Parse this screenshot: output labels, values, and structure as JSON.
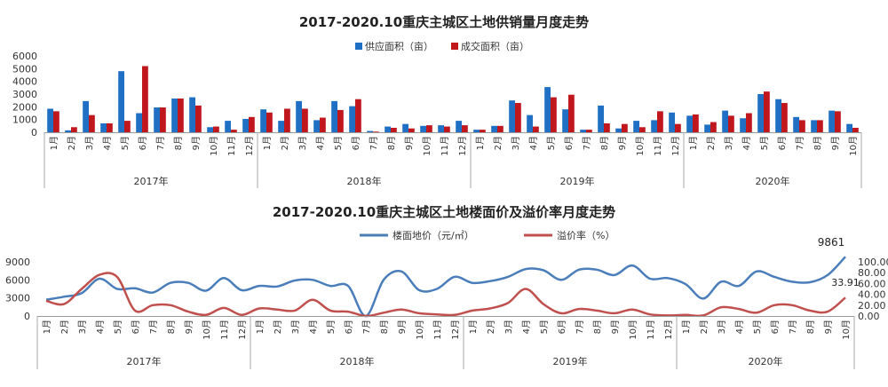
{
  "chart_data": [
    {
      "type": "bar",
      "title": "2017-2020.10重庆主城区土地供销量月度走势",
      "legend_position": "top",
      "grid": false,
      "ylim": [
        0,
        6000
      ],
      "yticks": [
        0,
        1000,
        2000,
        3000,
        4000,
        5000,
        6000
      ],
      "years": [
        {
          "label": "2017年",
          "months": 12
        },
        {
          "label": "2018年",
          "months": 12
        },
        {
          "label": "2019年",
          "months": 12
        },
        {
          "label": "2020年",
          "months": 10
        }
      ],
      "categories": [
        "1月",
        "2月",
        "3月",
        "4月",
        "5月",
        "6月",
        "7月",
        "8月",
        "9月",
        "10月",
        "11月",
        "12月",
        "1月",
        "2月",
        "3月",
        "4月",
        "5月",
        "6月",
        "7月",
        "8月",
        "9月",
        "10月",
        "11月",
        "12月",
        "1月",
        "2月",
        "3月",
        "4月",
        "5月",
        "6月",
        "7月",
        "8月",
        "9月",
        "10月",
        "11月",
        "12月",
        "1月",
        "2月",
        "3月",
        "4月",
        "5月",
        "6月",
        "7月",
        "8月",
        "9月",
        "10月"
      ],
      "series": [
        {
          "name": "供应面积（亩）",
          "color": "#1f6fc5",
          "values": [
            1850,
            150,
            2450,
            700,
            4800,
            1500,
            1950,
            2650,
            2750,
            400,
            900,
            1050,
            1800,
            900,
            2450,
            950,
            2450,
            2050,
            100,
            450,
            650,
            500,
            550,
            900,
            200,
            500,
            2500,
            1350,
            3550,
            1800,
            200,
            2100,
            300,
            900,
            950,
            1550,
            1300,
            600,
            1700,
            1100,
            3000,
            2600,
            1200,
            950,
            1700,
            650
          ]
        },
        {
          "name": "成交面积（亩）",
          "color": "#c0171c",
          "values": [
            1650,
            400,
            1350,
            700,
            900,
            5200,
            1950,
            2650,
            2100,
            450,
            200,
            1200,
            1550,
            1850,
            1850,
            1150,
            1750,
            2600,
            50,
            350,
            300,
            550,
            450,
            550,
            200,
            500,
            2300,
            450,
            2750,
            2950,
            200,
            700,
            650,
            400,
            1650,
            650,
            1400,
            800,
            1300,
            1500,
            3200,
            2300,
            950,
            950,
            1650,
            350
          ]
        }
      ]
    },
    {
      "type": "line",
      "title": "2017-2020.10重庆主城区土地楼面价及溢价率月度走势",
      "legend_position": "top",
      "grid": false,
      "ylim_left": [
        0,
        9000
      ],
      "yticks_left": [
        0,
        3000,
        6000,
        9000
      ],
      "ylim_right": [
        0,
        100
      ],
      "yticks_right": [
        "0.00",
        "20.00",
        "40.00",
        "60.00",
        "80.00",
        "100.00"
      ],
      "series": [
        {
          "name": "楼面地价（元/㎡）",
          "color": "#4a7ebb",
          "axis": "left",
          "values": [
            2700,
            3200,
            3800,
            6200,
            4500,
            4600,
            3900,
            5500,
            5500,
            4200,
            6300,
            4300,
            5000,
            4900,
            5900,
            6000,
            5000,
            5000,
            0,
            6000,
            7400,
            4300,
            4500,
            6500,
            5500,
            5800,
            6500,
            7800,
            7600,
            6000,
            7700,
            7700,
            6800,
            8400,
            6200,
            6300,
            5300,
            2900,
            5700,
            5000,
            7400,
            6500,
            5700,
            5600,
            6800,
            9861
          ]
        },
        {
          "name": "溢价率（%）",
          "color": "#c0504d",
          "axis": "right",
          "values": [
            28,
            22,
            50,
            76,
            72,
            10,
            20,
            20,
            8,
            2,
            15,
            2,
            14,
            12,
            10,
            30,
            10,
            8,
            0,
            6,
            12,
            5,
            3,
            2,
            10,
            14,
            24,
            50,
            22,
            5,
            13,
            10,
            5,
            12,
            3,
            1,
            2,
            1,
            16,
            13,
            6,
            20,
            20,
            10,
            8,
            33.91
          ]
        }
      ],
      "annotations": [
        "9861",
        "33.91"
      ]
    }
  ]
}
